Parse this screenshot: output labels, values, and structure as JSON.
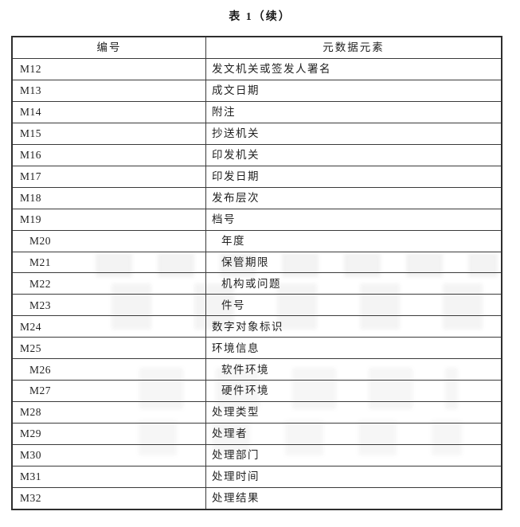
{
  "page": {
    "title": "表 1（续）"
  },
  "colors": {
    "border": "#2e2e2e",
    "grid_line": "#3a3a3a",
    "text": "#1f1f1f",
    "background": "#ffffff"
  },
  "table": {
    "headers": {
      "id": "编号",
      "element": "元数据元素"
    },
    "rows": [
      {
        "id": "M12",
        "label": "发文机关或签发人署名",
        "indent": false
      },
      {
        "id": "M13",
        "label": "成文日期",
        "indent": false
      },
      {
        "id": "M14",
        "label": "附注",
        "indent": false
      },
      {
        "id": "M15",
        "label": "抄送机关",
        "indent": false
      },
      {
        "id": "M16",
        "label": "印发机关",
        "indent": false
      },
      {
        "id": "M17",
        "label": "印发日期",
        "indent": false
      },
      {
        "id": "M18",
        "label": "发布层次",
        "indent": false
      },
      {
        "id": "M19",
        "label": "档号",
        "indent": false
      },
      {
        "id": "M20",
        "label": "年度",
        "indent": true
      },
      {
        "id": "M21",
        "label": "保管期限",
        "indent": true
      },
      {
        "id": "M22",
        "label": "机构或问题",
        "indent": true
      },
      {
        "id": "M23",
        "label": "件号",
        "indent": true
      },
      {
        "id": "M24",
        "label": "数字对象标识",
        "indent": false
      },
      {
        "id": "M25",
        "label": "环境信息",
        "indent": false
      },
      {
        "id": "M26",
        "label": "软件环境",
        "indent": true
      },
      {
        "id": "M27",
        "label": "硬件环境",
        "indent": true
      },
      {
        "id": "M28",
        "label": "处理类型",
        "indent": false
      },
      {
        "id": "M29",
        "label": "处理者",
        "indent": false
      },
      {
        "id": "M30",
        "label": "处理部门",
        "indent": false
      },
      {
        "id": "M31",
        "label": "处理时间",
        "indent": false
      },
      {
        "id": "M32",
        "label": "处理结果",
        "indent": false
      }
    ]
  }
}
